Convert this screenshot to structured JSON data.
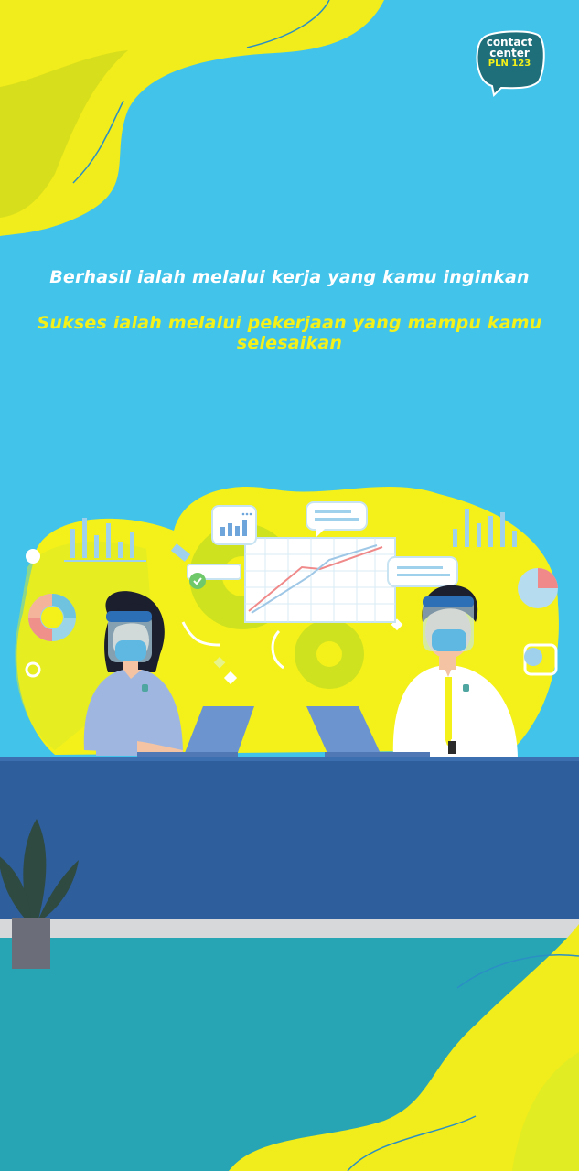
{
  "brand": {
    "logo_line1": "contact",
    "logo_line2": "center",
    "logo_line3": "PLN 123"
  },
  "headline": {
    "line1": "Berhasil ialah melalui kerja yang kamu inginkan",
    "line2": "Sukses ialah melalui pekerjaan yang mampu kamu selesaikan"
  },
  "illustration": {
    "face_shield_label": "Face Shield"
  },
  "colors": {
    "background": "#41c3ea",
    "accent_yellow": "#f4f11a",
    "desk_blue": "#2e5e9c",
    "floor_teal": "#27a5b5"
  }
}
